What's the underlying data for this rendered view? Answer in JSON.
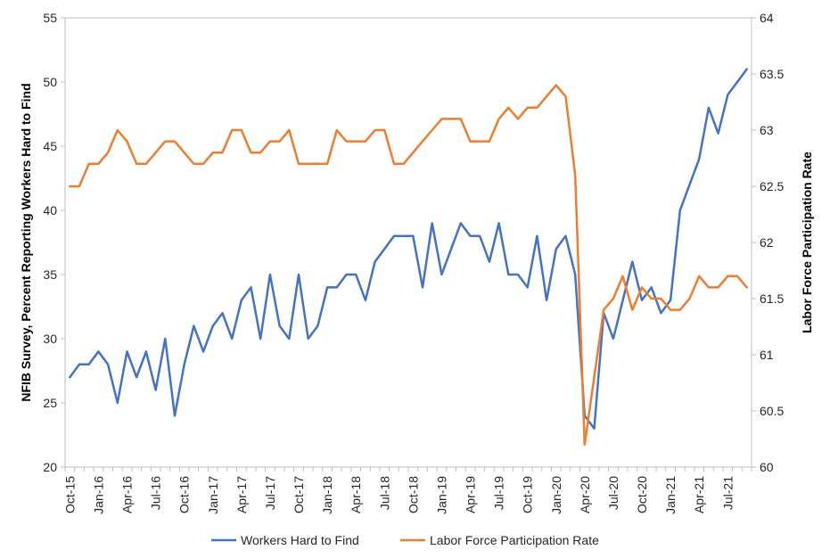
{
  "chart_data": {
    "type": "line",
    "x": [
      "Oct-15",
      "Nov-15",
      "Dec-15",
      "Jan-16",
      "Feb-16",
      "Mar-16",
      "Apr-16",
      "May-16",
      "Jun-16",
      "Jul-16",
      "Aug-16",
      "Sep-16",
      "Oct-16",
      "Nov-16",
      "Dec-16",
      "Jan-17",
      "Feb-17",
      "Mar-17",
      "Apr-17",
      "May-17",
      "Jun-17",
      "Jul-17",
      "Aug-17",
      "Sep-17",
      "Oct-17",
      "Nov-17",
      "Dec-17",
      "Jan-18",
      "Feb-18",
      "Mar-18",
      "Apr-18",
      "May-18",
      "Jun-18",
      "Jul-18",
      "Aug-18",
      "Sep-18",
      "Oct-18",
      "Nov-18",
      "Dec-18",
      "Jan-19",
      "Feb-19",
      "Mar-19",
      "Apr-19",
      "May-19",
      "Jun-19",
      "Jul-19",
      "Aug-19",
      "Sep-19",
      "Oct-19",
      "Nov-19",
      "Dec-19",
      "Jan-20",
      "Feb-20",
      "Mar-20",
      "Apr-20",
      "May-20",
      "Jun-20",
      "Jul-20",
      "Aug-20",
      "Sep-20",
      "Oct-20",
      "Nov-20",
      "Dec-20",
      "Jan-21",
      "Feb-21",
      "Mar-21",
      "Apr-21",
      "May-21",
      "Jun-21",
      "Jul-21",
      "Aug-21",
      "Sep-21"
    ],
    "x_tick_labels": [
      "Oct-15",
      "Jan-16",
      "Apr-16",
      "Jul-16",
      "Oct-16",
      "Jan-17",
      "Apr-17",
      "Jul-17",
      "Oct-17",
      "Jan-18",
      "Apr-18",
      "Jul-18",
      "Oct-18",
      "Jan-19",
      "Apr-19",
      "Jul-19",
      "Oct-19",
      "Jan-20",
      "Apr-20",
      "Jul-20",
      "Oct-20",
      "Jan-21",
      "Apr-21",
      "Jul-21"
    ],
    "series": [
      {
        "name": "Workers Hard to Find",
        "axis": "left",
        "color": "#4472C4",
        "values": [
          27,
          28,
          28,
          29,
          28,
          25,
          29,
          27,
          29,
          26,
          30,
          24,
          28,
          31,
          29,
          31,
          32,
          30,
          33,
          34,
          30,
          35,
          31,
          30,
          35,
          30,
          31,
          34,
          34,
          35,
          35,
          33,
          36,
          37,
          38,
          38,
          38,
          34,
          39,
          35,
          37,
          39,
          38,
          38,
          36,
          39,
          35,
          35,
          34,
          38,
          33,
          37,
          38,
          35,
          24,
          23,
          32,
          30,
          33,
          36,
          33,
          34,
          32,
          33,
          40,
          42,
          44,
          48,
          46,
          49,
          50,
          51
        ]
      },
      {
        "name": "Labor Force Participation Rate",
        "axis": "right",
        "color": "#ED7D31",
        "values": [
          62.5,
          62.5,
          62.7,
          62.7,
          62.8,
          63.0,
          62.9,
          62.7,
          62.7,
          62.8,
          62.9,
          62.9,
          62.8,
          62.7,
          62.7,
          62.8,
          62.8,
          63.0,
          63.0,
          62.8,
          62.8,
          62.9,
          62.9,
          63.0,
          62.7,
          62.7,
          62.7,
          62.7,
          63.0,
          62.9,
          62.9,
          62.9,
          63.0,
          63.0,
          62.7,
          62.7,
          62.8,
          62.9,
          63.0,
          63.1,
          63.1,
          63.1,
          62.9,
          62.9,
          62.9,
          63.1,
          63.2,
          63.1,
          63.2,
          63.2,
          63.3,
          63.4,
          63.3,
          62.6,
          60.2,
          60.8,
          61.4,
          61.5,
          61.7,
          61.4,
          61.6,
          61.5,
          61.5,
          61.4,
          61.4,
          61.5,
          61.7,
          61.6,
          61.6,
          61.7,
          61.7,
          61.6
        ]
      }
    ],
    "y_left": {
      "label": "NFIB Survey, Percent Reporting Workers Hard to Find",
      "min": 20,
      "max": 55,
      "ticks": [
        20,
        25,
        30,
        35,
        40,
        45,
        50,
        55
      ]
    },
    "y_right": {
      "label": "Labor Force Participation Rate",
      "min": 60,
      "max": 64,
      "ticks": [
        60,
        60.5,
        61,
        61.5,
        62,
        62.5,
        63,
        63.5,
        64
      ]
    },
    "grid": false,
    "legend_position": "bottom"
  }
}
